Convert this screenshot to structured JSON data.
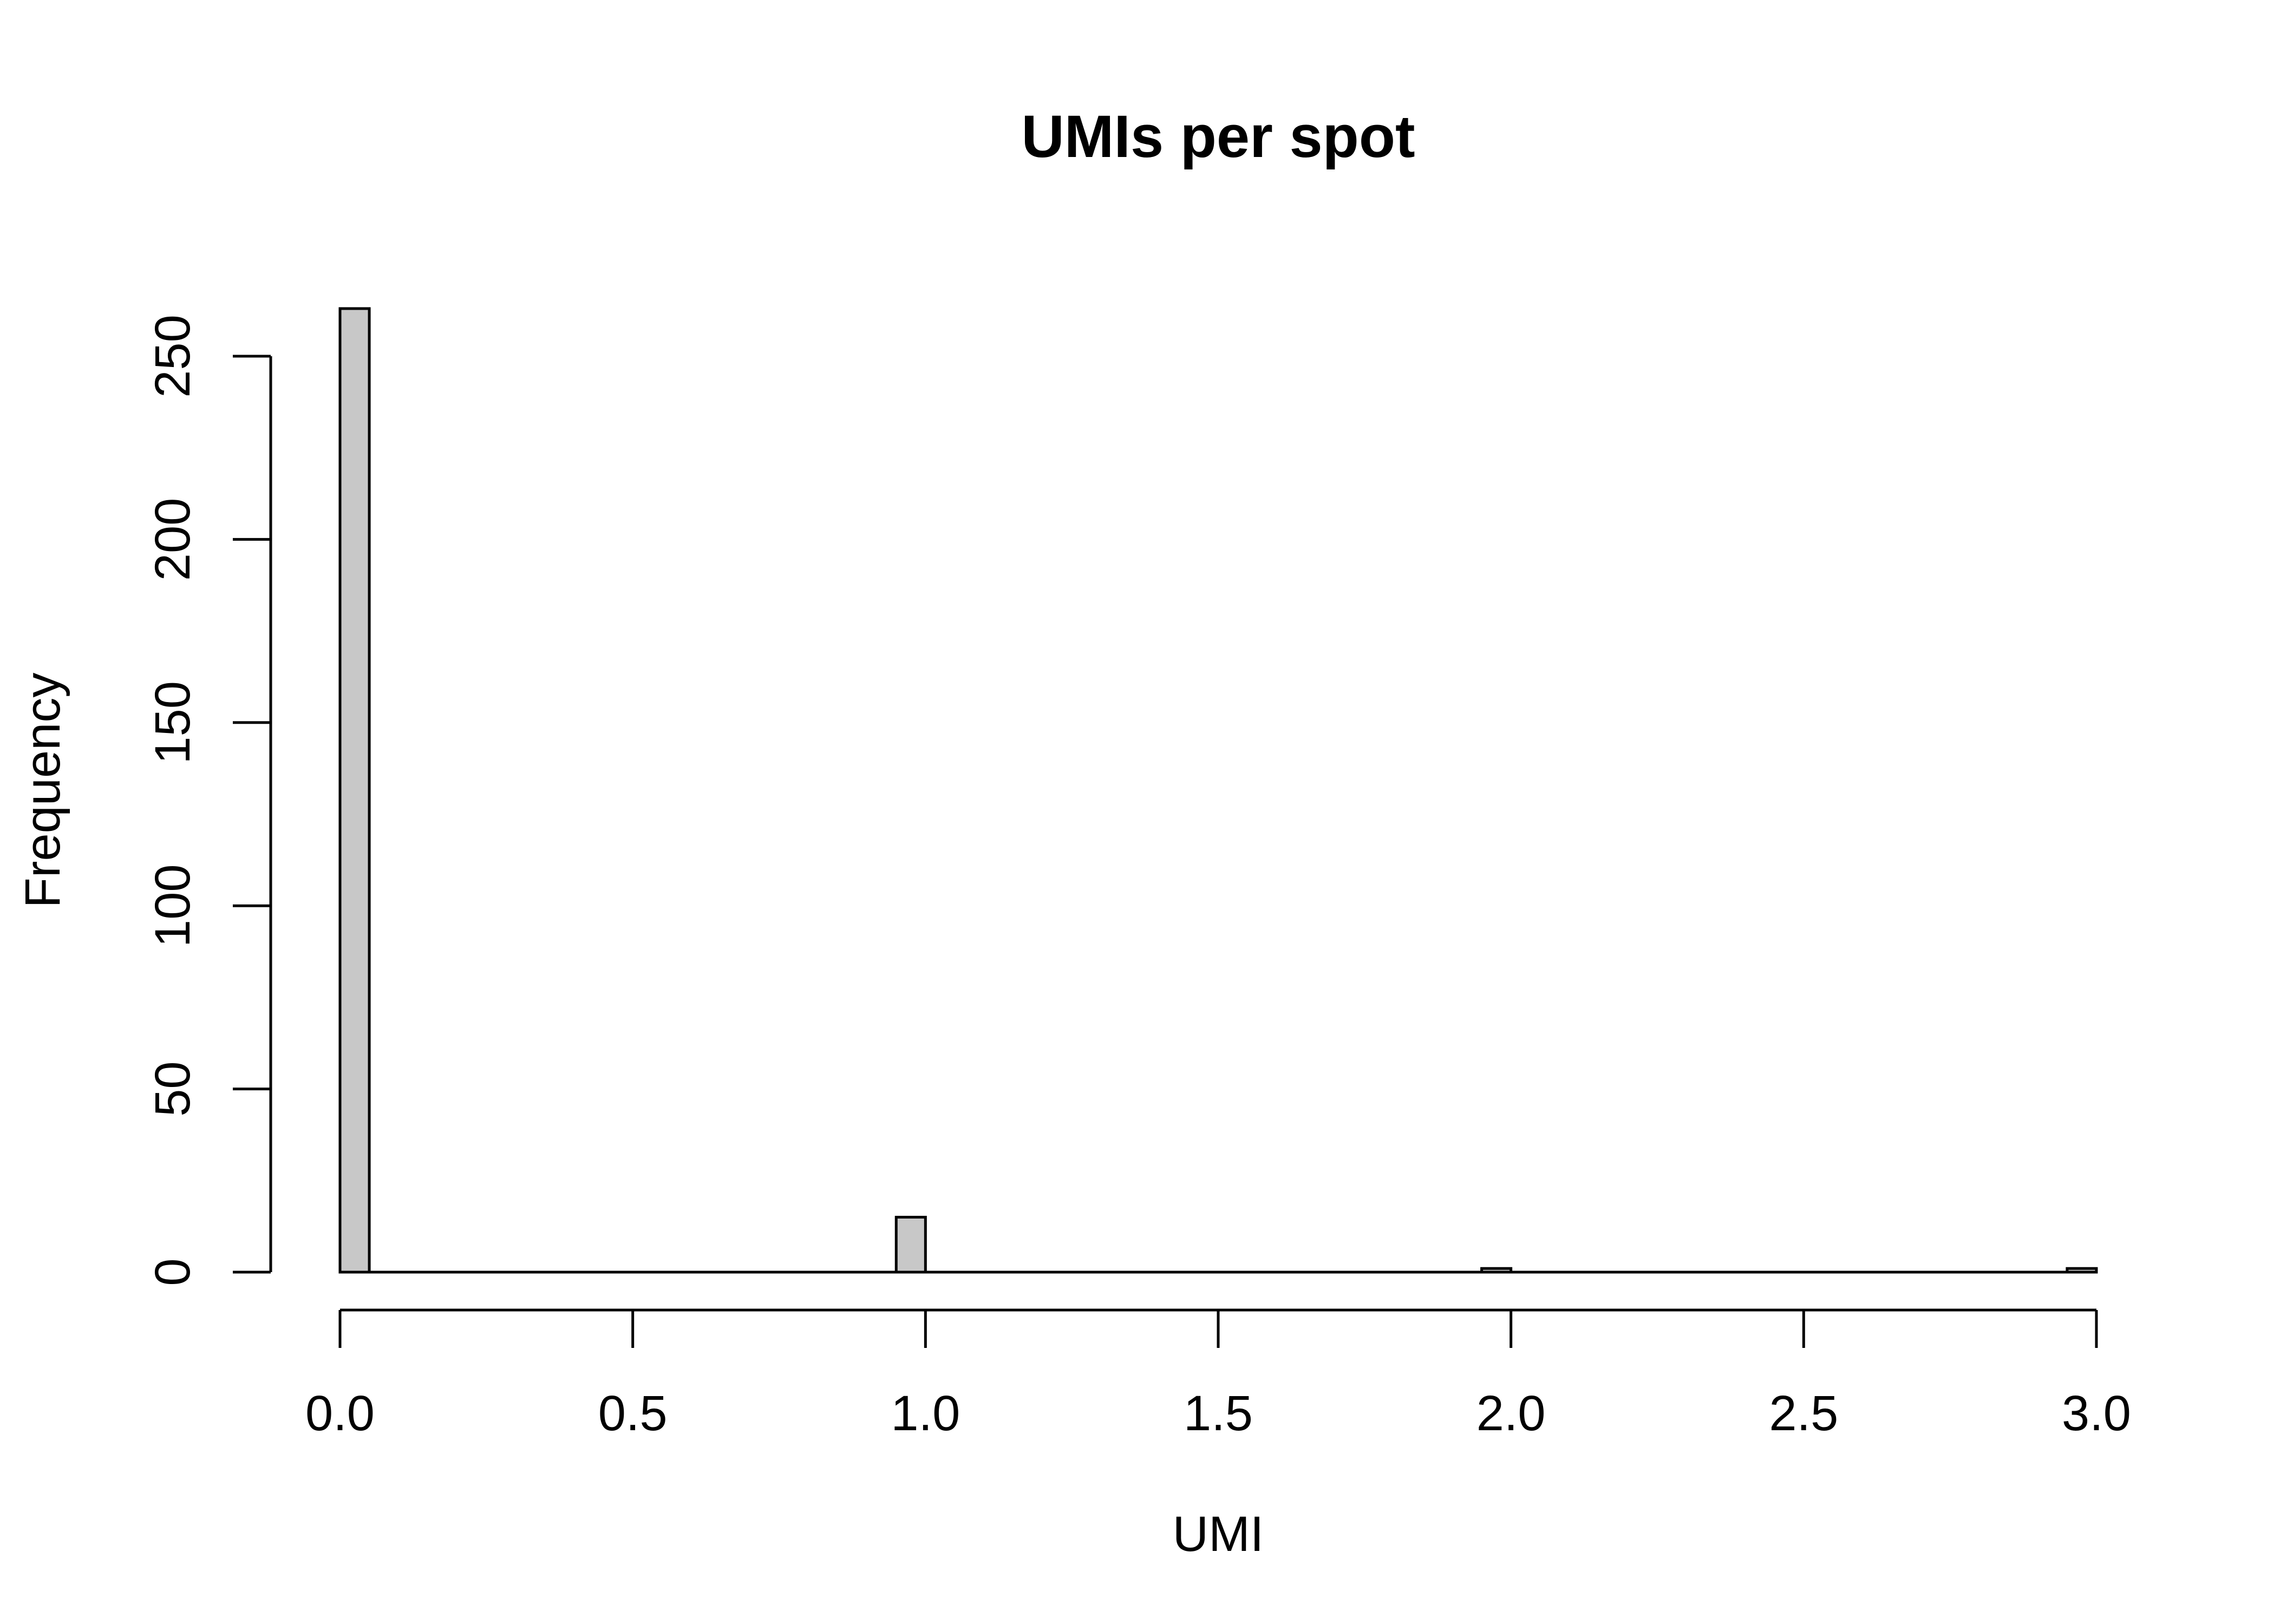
{
  "chart_data": {
    "type": "bar",
    "title": "UMIs per spot",
    "xlabel": "UMI",
    "ylabel": "Frequency",
    "xlim": [
      0,
      3
    ],
    "ylim": [
      0,
      250
    ],
    "x_ticks": [
      "0.0",
      "0.5",
      "1.0",
      "1.5",
      "2.0",
      "2.5",
      "3.0"
    ],
    "x_tick_values": [
      0,
      0.5,
      1,
      1.5,
      2,
      2.5,
      3
    ],
    "y_ticks": [
      "0",
      "50",
      "100",
      "150",
      "200",
      "250"
    ],
    "y_tick_values": [
      0,
      50,
      100,
      150,
      200,
      250
    ],
    "bins": [
      {
        "start": 0.0,
        "end": 0.05,
        "count": 263
      },
      {
        "start": 0.95,
        "end": 1.0,
        "count": 15
      },
      {
        "start": 1.95,
        "end": 2.0,
        "count": 1
      },
      {
        "start": 2.95,
        "end": 3.0,
        "count": 1
      }
    ],
    "bar_fill": "#c8c8c8",
    "bar_stroke": "#000000",
    "grid": false,
    "legend": "none"
  }
}
